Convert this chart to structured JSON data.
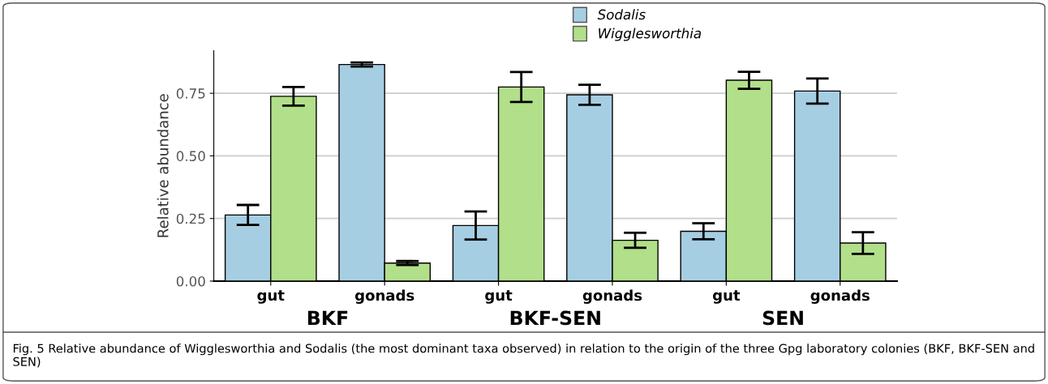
{
  "chart_data": {
    "type": "bar",
    "ylabel": "Relative abundance",
    "categories": [
      "gut",
      "gonads",
      "gut",
      "gonads",
      "gut",
      "gonads"
    ],
    "series": [
      {
        "name": "Sodalis",
        "color": "#a6cee3",
        "values": [
          0.264,
          0.865,
          0.222,
          0.744,
          0.199,
          0.759
        ],
        "errors": [
          0.04,
          0.008,
          0.056,
          0.04,
          0.032,
          0.05
        ]
      },
      {
        "name": "Wigglesworthia",
        "color": "#b2df8a",
        "values": [
          0.738,
          0.072,
          0.775,
          0.163,
          0.802,
          0.152
        ],
        "errors": [
          0.037,
          0.008,
          0.06,
          0.03,
          0.034,
          0.043
        ]
      }
    ],
    "ylim": [
      0,
      0.92
    ],
    "yticks": [
      {
        "value": 0,
        "label": "0.00"
      },
      {
        "value": 0.25,
        "label": "0.25"
      },
      {
        "value": 0.5,
        "label": "0.50"
      },
      {
        "value": 0.75,
        "label": "0.75"
      }
    ],
    "grid": "y",
    "legend": "top",
    "annotations": [
      "BKF",
      "BKF-SEN",
      "SEN",
      "Fig. 5 Relative abundance of Wigglesworthia and Sodalis (the most dominant taxa observed) in relation to the origin of the three Gpg laboratory colonies (BKF, BKF-SEN and SEN)"
    ]
  }
}
